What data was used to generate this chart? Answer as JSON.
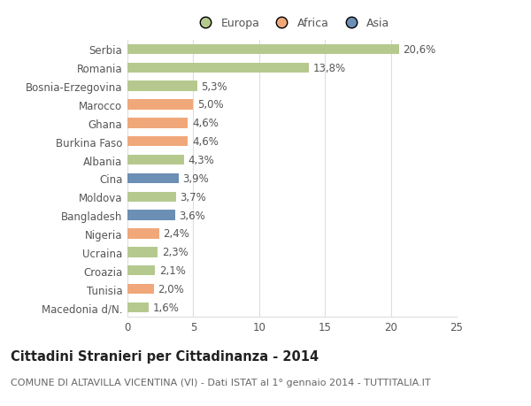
{
  "categories": [
    "Serbia",
    "Romania",
    "Bosnia-Erzegovina",
    "Marocco",
    "Ghana",
    "Burkina Faso",
    "Albania",
    "Cina",
    "Moldova",
    "Bangladesh",
    "Nigeria",
    "Ucraina",
    "Croazia",
    "Tunisia",
    "Macedonia d/N."
  ],
  "values": [
    20.6,
    13.8,
    5.3,
    5.0,
    4.6,
    4.6,
    4.3,
    3.9,
    3.7,
    3.6,
    2.4,
    2.3,
    2.1,
    2.0,
    1.6
  ],
  "labels": [
    "20,6%",
    "13,8%",
    "5,3%",
    "5,0%",
    "4,6%",
    "4,6%",
    "4,3%",
    "3,9%",
    "3,7%",
    "3,6%",
    "2,4%",
    "2,3%",
    "2,1%",
    "2,0%",
    "1,6%"
  ],
  "continents": [
    "Europa",
    "Europa",
    "Europa",
    "Africa",
    "Africa",
    "Africa",
    "Europa",
    "Asia",
    "Europa",
    "Asia",
    "Africa",
    "Europa",
    "Europa",
    "Africa",
    "Europa"
  ],
  "colors": {
    "Europa": "#b5c98e",
    "Africa": "#f0a87a",
    "Asia": "#6b8fb5"
  },
  "xlim": [
    0,
    25
  ],
  "xticks": [
    0,
    5,
    10,
    15,
    20,
    25
  ],
  "title": "Cittadini Stranieri per Cittadinanza - 2014",
  "subtitle": "COMUNE DI ALTAVILLA VICENTINA (VI) - Dati ISTAT al 1° gennaio 2014 - TUTTITALIA.IT",
  "background_color": "#ffffff",
  "bar_height": 0.55,
  "grid_color": "#dddddd",
  "label_fontsize": 8.5,
  "tick_fontsize": 8.5,
  "title_fontsize": 10.5,
  "subtitle_fontsize": 8
}
